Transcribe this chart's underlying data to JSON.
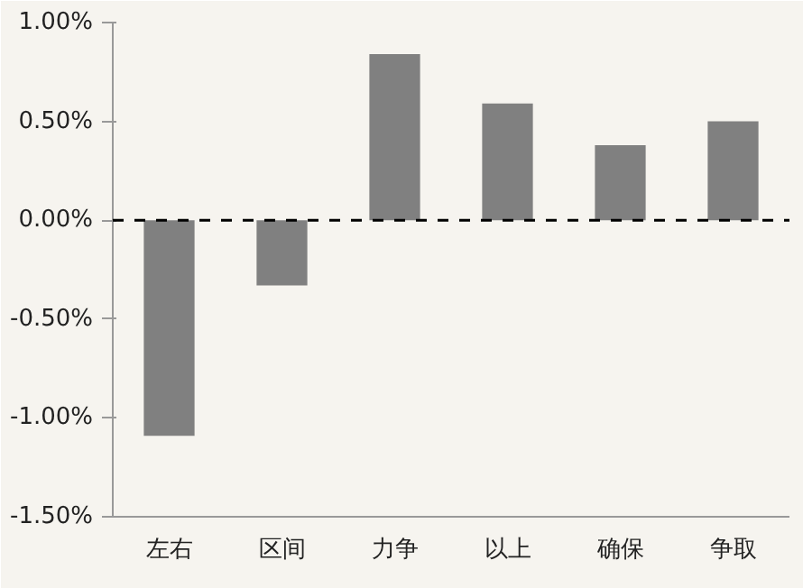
{
  "chart_data": {
    "type": "bar",
    "categories": [
      "左右",
      "区间",
      "力争",
      "以上",
      "确保",
      "争取"
    ],
    "values": [
      -1.09,
      -0.33,
      0.84,
      0.59,
      0.38,
      0.5
    ],
    "color": "#808080",
    "ylim": [
      -1.5,
      1.0
    ],
    "yticks": [
      {
        "value": 1.0,
        "label": "1.00%"
      },
      {
        "value": 0.5,
        "label": "0.50%"
      },
      {
        "value": 0.0,
        "label": "0.00%"
      },
      {
        "value": -0.5,
        "label": "-0.50%"
      },
      {
        "value": -1.0,
        "label": "-1.00%"
      },
      {
        "value": -1.5,
        "label": "-1.50%"
      }
    ],
    "ref_lines": [
      {
        "axis": "y",
        "value": 0,
        "label": null,
        "color": "#000000",
        "line_style": "dashed"
      }
    ]
  }
}
